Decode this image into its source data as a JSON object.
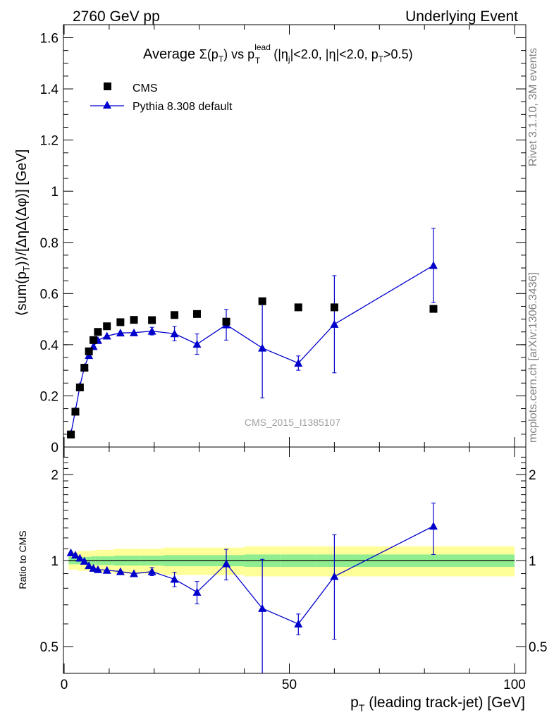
{
  "header": {
    "left": "2760 GeV pp",
    "right": "Underlying Event"
  },
  "side_labels": {
    "rivet": "Rivet 3.1.10,  3M events",
    "mcplots": "mcplots.cern.ch [arXiv:1306.3436]"
  },
  "watermark": "CMS_2015_I1385107",
  "chart_data": [
    {
      "type": "scatter",
      "title": "Average Σ(pT) vs pT lead (|ηj|<2.0, |η|<2.0, pT>0.5)",
      "ylabel": "⟨sum(pT)⟩/[ΔηΔ(Δφ)] [GeV]",
      "xlabel": "",
      "xlim": [
        0,
        100
      ],
      "ylim": [
        0,
        1.65
      ],
      "yticks": [
        "0",
        "0.2",
        "0.4",
        "0.6",
        "0.8",
        "1",
        "1.2",
        "1.4",
        "1.6"
      ],
      "legend_position": "top-left",
      "series": [
        {
          "name": "CMS",
          "marker": "square",
          "color": "#000000",
          "x": [
            1.5,
            2.5,
            3.5,
            4.5,
            5.5,
            6.5,
            7.5,
            9.5,
            12.5,
            15.5,
            19.5,
            24.5,
            29.5,
            36.0,
            44.0,
            52.0,
            60.0,
            82.0
          ],
          "y": [
            0.049,
            0.138,
            0.233,
            0.31,
            0.374,
            0.418,
            0.45,
            0.472,
            0.488,
            0.497,
            0.496,
            0.516,
            0.52,
            0.49,
            0.57,
            0.546,
            0.546,
            0.54
          ]
        },
        {
          "name": "Pythia 8.308 default",
          "marker": "triangle",
          "color": "#0000cc",
          "x": [
            1.5,
            2.5,
            3.5,
            4.5,
            5.5,
            6.5,
            7.5,
            9.5,
            12.5,
            15.5,
            19.5,
            24.5,
            29.5,
            36.0,
            44.0,
            52.0,
            60.0,
            82.0
          ],
          "y": [
            0.052,
            0.142,
            0.238,
            0.312,
            0.358,
            0.393,
            0.417,
            0.434,
            0.446,
            0.447,
            0.453,
            0.443,
            0.402,
            0.478,
            0.387,
            0.328,
            0.48,
            0.71
          ],
          "err": [
            0.004,
            0.005,
            0.006,
            0.007,
            0.007,
            0.008,
            0.008,
            0.008,
            0.009,
            0.01,
            0.015,
            0.028,
            0.04,
            0.06,
            0.195,
            0.028,
            0.19,
            0.145
          ]
        }
      ]
    },
    {
      "type": "scatter",
      "ylabel": "Ratio to CMS",
      "xlabel": "pT (leading track-jet) [GeV]",
      "xlim": [
        0,
        100
      ],
      "ylim": [
        0.35,
        2.35
      ],
      "log_y": true,
      "xticks": [
        "0",
        "50",
        "100"
      ],
      "yticks": [
        "0.5",
        "1",
        "2"
      ],
      "reference_line": 1,
      "bands": {
        "x_edges": [
          1,
          2,
          3,
          4,
          5,
          6,
          7,
          8,
          11,
          14,
          17,
          22,
          27,
          32,
          40,
          48,
          56,
          64,
          100
        ],
        "inner": [
          0.03,
          0.03,
          0.03,
          0.03,
          0.03,
          0.035,
          0.035,
          0.035,
          0.04,
          0.04,
          0.04,
          0.045,
          0.045,
          0.045,
          0.05,
          0.05,
          0.05,
          0.05
        ],
        "outer": [
          0.07,
          0.07,
          0.08,
          0.08,
          0.08,
          0.085,
          0.09,
          0.09,
          0.1,
          0.1,
          0.1,
          0.11,
          0.11,
          0.11,
          0.12,
          0.12,
          0.12,
          0.12
        ],
        "inner_color": "#90ee90",
        "outer_color": "#ffff99"
      },
      "series": [
        {
          "name": "Pythia 8.308 default",
          "marker": "triangle",
          "color": "#0000cc",
          "x": [
            1.5,
            2.5,
            3.5,
            4.5,
            5.5,
            6.5,
            7.5,
            9.5,
            12.5,
            15.5,
            19.5,
            24.5,
            29.5,
            36.0,
            44.0,
            52.0,
            60.0,
            82.0
          ],
          "y": [
            1.065,
            1.045,
            1.02,
            0.995,
            0.96,
            0.94,
            0.93,
            0.925,
            0.915,
            0.9,
            0.915,
            0.86,
            0.775,
            0.975,
            0.68,
            0.6,
            0.88,
            1.32
          ],
          "err_up": [
            0.01,
            0.01,
            0.01,
            0.01,
            0.01,
            0.01,
            0.01,
            0.01,
            0.015,
            0.015,
            0.03,
            0.05,
            0.07,
            0.12,
            0.33,
            0.05,
            0.35,
            0.27
          ],
          "err_down": [
            0.01,
            0.01,
            0.01,
            0.01,
            0.01,
            0.01,
            0.01,
            0.01,
            0.015,
            0.015,
            0.03,
            0.05,
            0.07,
            0.12,
            0.33,
            0.05,
            0.35,
            0.27
          ]
        }
      ]
    }
  ]
}
